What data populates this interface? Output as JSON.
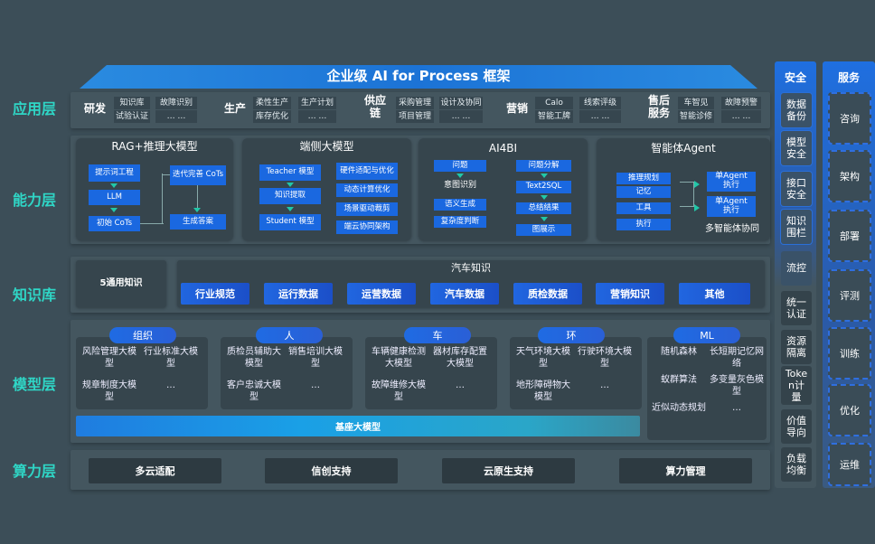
{
  "title": "企业级 AI for Process 框架",
  "layers": {
    "app": "应用层",
    "capability": "能力层",
    "knowledge": "知识库",
    "model": "模型层",
    "compute": "算力层"
  },
  "app": [
    {
      "name": "研发",
      "items": [
        "知识库",
        "试验认证",
        "故障识别",
        "… …"
      ]
    },
    {
      "name": "生产",
      "items": [
        "柔性生产",
        "库存优化",
        "生产计划",
        "… …"
      ]
    },
    {
      "name": "供应链",
      "items": [
        "采购管理",
        "项目管理",
        "设计及协同",
        "… …"
      ]
    },
    {
      "name": "营销",
      "items": [
        "Calo",
        "智能工牌",
        "线索评级",
        "… …"
      ]
    },
    {
      "name": "售后服务",
      "items": [
        "车智见",
        "智能诊修",
        "故障预警",
        "… …"
      ]
    }
  ],
  "capability": {
    "rag": {
      "title": "RAG+推理大模型",
      "items": [
        "提示词工程",
        "LLM",
        "初始 CoTs",
        "迭代完善 CoTs",
        "生成答案"
      ]
    },
    "edge": {
      "title": "端侧大模型",
      "items": [
        "Teacher 模型",
        "知识提取",
        "Student 模型",
        "硬件适配与优化",
        "动态计算优化",
        "场景驱动裁剪",
        "端云协同架构"
      ]
    },
    "ai4bi": {
      "title": "AI4BI",
      "items": [
        "问题",
        "意图识别",
        "语义生成",
        "复杂度判断",
        "问题分解",
        "Text2SQL",
        "总结结果",
        "图展示"
      ]
    },
    "agent": {
      "title": "智能体Agent",
      "items": [
        "推理规划",
        "记忆",
        "工具",
        "执行",
        "单Agent 执行",
        "单Agent 执行",
        "多智能体协同"
      ]
    }
  },
  "knowledge": {
    "general": "5通用知识",
    "auto_title": "汽车知识",
    "items": [
      "行业规范",
      "运行数据",
      "运营数据",
      "汽车数据",
      "质检数据",
      "营销知识",
      "其他"
    ]
  },
  "model": {
    "groups": [
      {
        "name": "组织",
        "items": [
          "风险管理大模型",
          "行业标准大模型",
          "规章制度大模型",
          "…"
        ]
      },
      {
        "name": "人",
        "items": [
          "质检员辅助大模型",
          "销售培训大模型",
          "客户忠诚大模型",
          "…"
        ]
      },
      {
        "name": "车",
        "items": [
          "车辆健康检测大模型",
          "器材库存配置大模型",
          "故障维修大模型",
          "…"
        ]
      },
      {
        "name": "环",
        "items": [
          "天气环境大模型",
          "行驶环境大模型",
          "地形障碍物大模型",
          "…"
        ]
      },
      {
        "name": "ML",
        "items": [
          "随机森林",
          "长短期记忆网络",
          "蚁群算法",
          "多变量灰色模型",
          "近似动态规划",
          "…"
        ]
      }
    ],
    "base": "基座大模型"
  },
  "compute": [
    "多云适配",
    "信创支持",
    "云原生支持",
    "算力管理"
  ],
  "security": {
    "title": "安全",
    "items": [
      "数据备份",
      "模型安全",
      "接口安全",
      "知识围栏",
      "流控",
      "统一认证",
      "资源隔离",
      "Token计量",
      "价值导向",
      "负载均衡"
    ]
  },
  "service": {
    "title": "服务",
    "items": [
      "咨询",
      "架构",
      "部署",
      "评测",
      "训练",
      "优化",
      "运维"
    ]
  },
  "colors": {
    "accent": "#1a68e0",
    "layer_label": "#2fd6c6",
    "background": "#3c4e58"
  }
}
